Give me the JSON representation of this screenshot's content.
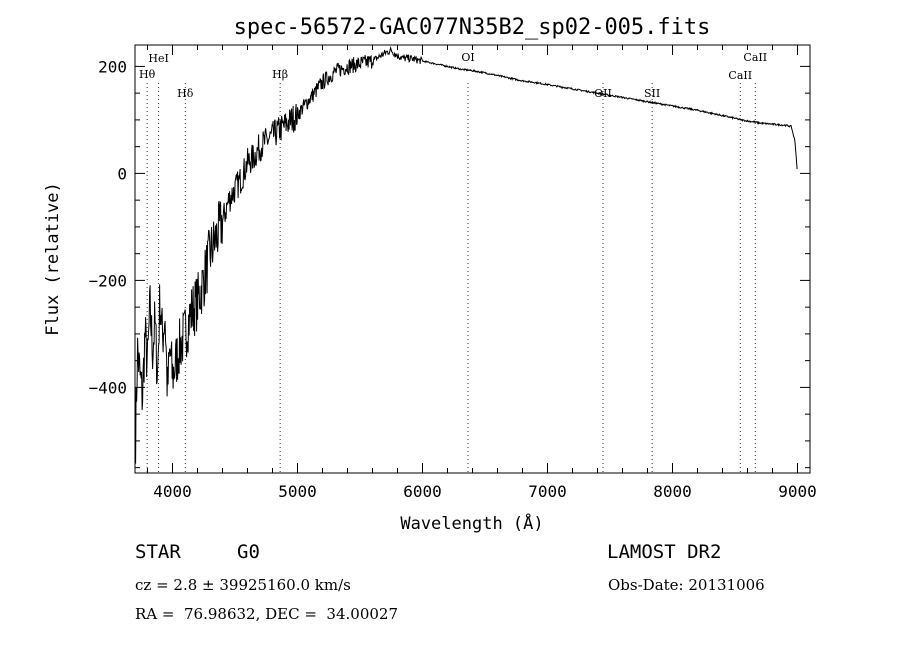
{
  "chart_data": {
    "type": "line",
    "title": "spec-56572-GAC077N35B2_sp02-005.fits",
    "xlabel": "Wavelength (Å)",
    "ylabel": "Flux (relative)",
    "xlim": [
      3700,
      9100
    ],
    "ylim": [
      -560,
      240
    ],
    "xticks": [
      4000,
      5000,
      6000,
      7000,
      8000,
      9000
    ],
    "yticks": [
      -400,
      -200,
      0,
      200
    ],
    "grid": false,
    "line_color": "#000000",
    "spectral_lines": [
      {
        "label": "Hθ",
        "wavelength": 3797
      },
      {
        "label": "HeI",
        "wavelength": 3889
      },
      {
        "label": "Hδ",
        "wavelength": 4102
      },
      {
        "label": "Hβ",
        "wavelength": 4861
      },
      {
        "label": "OI",
        "wavelength": 6364
      },
      {
        "label": "OII",
        "wavelength": 7444
      },
      {
        "label": "SII",
        "wavelength": 7837
      },
      {
        "label": "CaII",
        "wavelength": 8542
      },
      {
        "label": "CaII",
        "wavelength": 8662
      }
    ],
    "series": [
      {
        "x": [
          3700,
          3720,
          3740,
          3760,
          3780,
          3800,
          3820,
          3840,
          3860,
          3880,
          3900,
          3920,
          3940,
          3960,
          3980,
          4000,
          4050,
          4100,
          4150,
          4200,
          4250,
          4300,
          4350,
          4400,
          4450,
          4500,
          4550,
          4600,
          4650,
          4700,
          4750,
          4800,
          4850,
          4900,
          4950,
          5000,
          5100,
          5200,
          5300,
          5400,
          5500,
          5600,
          5700,
          5750,
          5800,
          5850,
          5900,
          6000,
          6100,
          6200,
          6300,
          6400,
          6500,
          6600,
          6700,
          6800,
          6900,
          7000,
          7100,
          7200,
          7300,
          7400,
          7500,
          7600,
          7700,
          7800,
          7900,
          8000,
          8100,
          8200,
          8300,
          8400,
          8500,
          8550,
          8600,
          8660,
          8700,
          8800,
          8900,
          8950,
          8980,
          9000
        ],
        "y": [
          -540,
          -330,
          -380,
          -420,
          -300,
          -360,
          -250,
          -330,
          -280,
          -380,
          -230,
          -310,
          -260,
          -410,
          -330,
          -380,
          -330,
          -300,
          -260,
          -240,
          -200,
          -150,
          -120,
          -90,
          -50,
          -30,
          -10,
          20,
          30,
          50,
          60,
          70,
          80,
          90,
          100,
          110,
          140,
          170,
          190,
          200,
          205,
          210,
          225,
          230,
          220,
          215,
          215,
          210,
          205,
          200,
          195,
          192,
          188,
          183,
          178,
          173,
          170,
          166,
          162,
          158,
          154,
          150,
          146,
          142,
          138,
          134,
          130,
          126,
          122,
          118,
          113,
          108,
          103,
          100,
          98,
          96,
          94,
          92,
          90,
          88,
          60,
          0
        ]
      }
    ]
  },
  "info": {
    "object_class": "STAR",
    "subclass": "G0",
    "survey": "LAMOST DR2",
    "redshift": "cz = 2.8 ± 39925160.0 km/s",
    "obs_date": "Obs-Date: 20131006",
    "coords": "RA =  76.98632, DEC =  34.00027"
  }
}
